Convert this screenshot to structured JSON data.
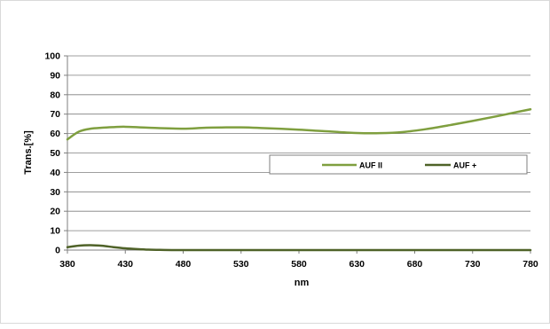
{
  "chart_data": {
    "type": "line",
    "xlabel": "nm",
    "ylabel": "Trans.[%]",
    "xlim": [
      380,
      780
    ],
    "ylim": [
      0,
      100
    ],
    "x_ticks": [
      380,
      430,
      480,
      530,
      580,
      630,
      680,
      730,
      780
    ],
    "y_ticks": [
      0,
      10,
      20,
      30,
      40,
      50,
      60,
      70,
      80,
      90,
      100
    ],
    "grid": "horizontal",
    "legend_placement": "right",
    "series": [
      {
        "name": "AUF II",
        "color": "#7f9f3f",
        "x": [
          380,
          390,
          400,
          410,
          420,
          430,
          450,
          480,
          500,
          530,
          550,
          580,
          600,
          630,
          650,
          670,
          690,
          710,
          730,
          750,
          770,
          780
        ],
        "y": [
          57,
          61,
          62.5,
          63,
          63.3,
          63.5,
          63,
          62.5,
          63,
          63.2,
          62.8,
          62,
          61.3,
          60.3,
          60.2,
          60.8,
          62.3,
          64.3,
          66.5,
          68.8,
          71.3,
          72.5
        ]
      },
      {
        "name": "AUF +",
        "color": "#4f6228",
        "x": [
          380,
          390,
          400,
          410,
          420,
          430,
          440,
          450,
          460,
          470,
          480,
          530,
          580,
          630,
          680,
          730,
          780
        ],
        "y": [
          1.5,
          2.3,
          2.5,
          2.2,
          1.5,
          0.9,
          0.5,
          0.2,
          0.1,
          0,
          0,
          0,
          0,
          0,
          0,
          0,
          0
        ]
      }
    ]
  }
}
